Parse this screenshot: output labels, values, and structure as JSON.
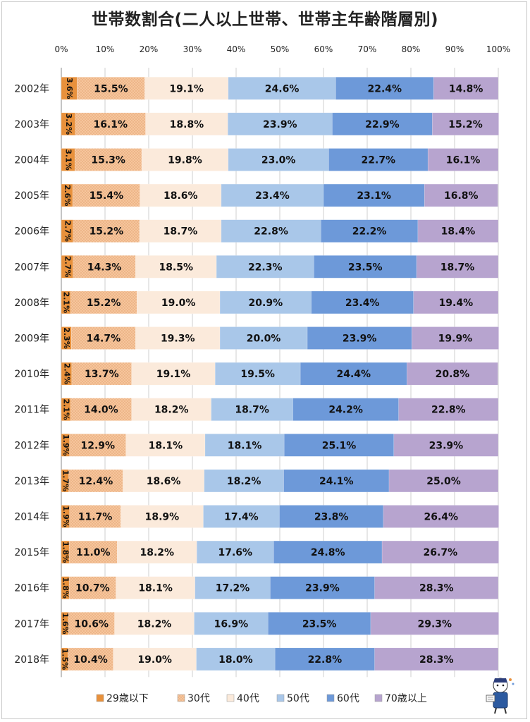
{
  "chart_data": {
    "type": "bar",
    "orientation": "horizontal",
    "stacked": "percent",
    "title": "世帯数割合(二人以上世帯、世帯主年齢階層別)",
    "xlabel": "",
    "ylabel": "",
    "xlim": [
      0,
      100
    ],
    "x_ticks": [
      "0%",
      "10%",
      "20%",
      "30%",
      "40%",
      "50%",
      "60%",
      "70%",
      "80%",
      "90%",
      "100%"
    ],
    "legend_position": "bottom",
    "categories": [
      "2002年",
      "2003年",
      "2004年",
      "2005年",
      "2006年",
      "2007年",
      "2008年",
      "2009年",
      "2010年",
      "2011年",
      "2012年",
      "2013年",
      "2014年",
      "2015年",
      "2016年",
      "2017年",
      "2018年"
    ],
    "series": [
      {
        "name": "29歳以下",
        "color": "#e8913c",
        "values": [
          3.6,
          3.2,
          3.1,
          2.6,
          2.7,
          2.7,
          2.1,
          2.3,
          2.4,
          2.1,
          1.9,
          1.7,
          1.9,
          1.8,
          1.8,
          1.6,
          1.5
        ]
      },
      {
        "name": "30代",
        "color": "#f6c59c",
        "values": [
          15.5,
          16.1,
          15.3,
          15.4,
          15.2,
          14.3,
          15.2,
          14.7,
          13.7,
          14.0,
          12.9,
          12.4,
          11.7,
          11.0,
          10.7,
          10.6,
          10.4
        ]
      },
      {
        "name": "40代",
        "color": "#fbeadb",
        "values": [
          19.1,
          18.8,
          19.8,
          18.6,
          18.7,
          18.5,
          19.0,
          19.3,
          19.1,
          18.2,
          18.1,
          18.6,
          18.9,
          18.2,
          18.1,
          18.2,
          19.0
        ]
      },
      {
        "name": "50代",
        "color": "#a9c7e9",
        "values": [
          24.6,
          23.9,
          23.0,
          23.4,
          22.8,
          22.3,
          20.9,
          20.0,
          19.5,
          18.7,
          18.1,
          18.2,
          17.4,
          17.6,
          17.2,
          16.9,
          18.0
        ]
      },
      {
        "name": "60代",
        "color": "#6d99d9",
        "values": [
          22.4,
          22.9,
          22.7,
          23.1,
          22.2,
          23.5,
          23.4,
          23.9,
          24.4,
          24.2,
          25.1,
          24.1,
          23.8,
          24.8,
          23.9,
          23.5,
          22.8
        ]
      },
      {
        "name": "70歳以上",
        "color": "#b7a4cf",
        "values": [
          14.8,
          15.2,
          16.1,
          16.8,
          18.4,
          18.7,
          19.4,
          19.9,
          20.8,
          22.8,
          23.9,
          25.0,
          26.4,
          26.7,
          28.3,
          29.3,
          28.3
        ]
      }
    ]
  },
  "icons": {
    "mascot": "reporter-mascot-icon"
  }
}
